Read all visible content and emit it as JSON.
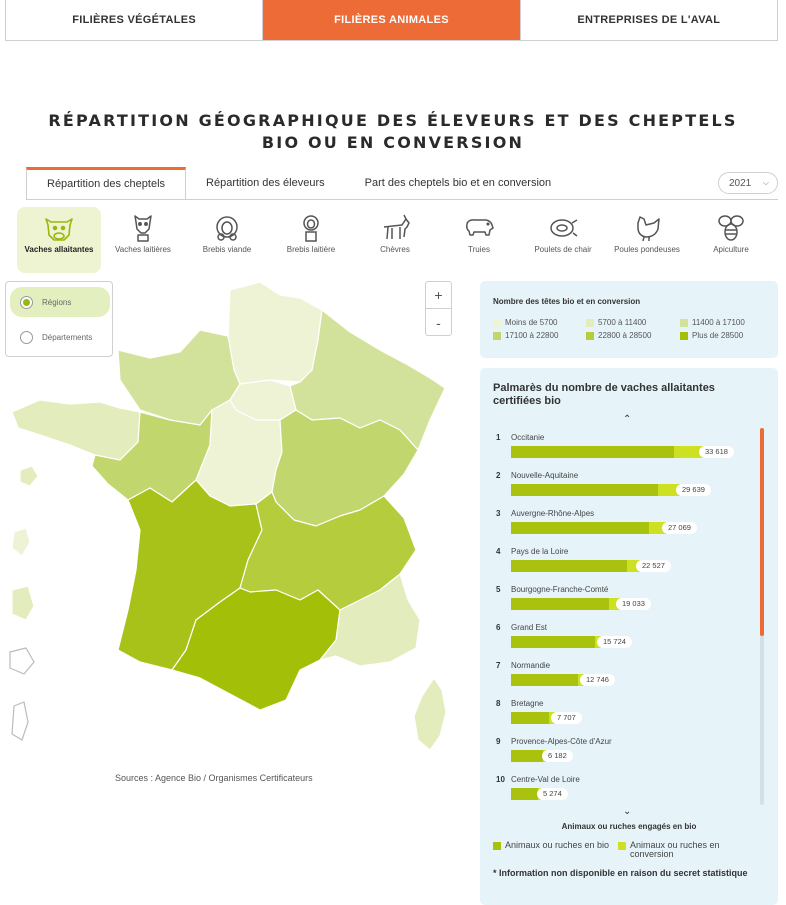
{
  "topnav": {
    "tabs": [
      {
        "label": "FILIÈRES VÉGÉTALES",
        "active": false
      },
      {
        "label": "FILIÈRES ANIMALES",
        "active": true
      },
      {
        "label": "ENTREPRISES DE L'AVAL",
        "active": false
      }
    ],
    "accent_color": "#ec6b36"
  },
  "page_title": "RÉPARTITION GÉOGRAPHIQUE DES ÉLEVEURS ET DES CHEPTELS BIO OU EN CONVERSION",
  "subtabs": [
    {
      "label": "Répartition des cheptels",
      "active": true
    },
    {
      "label": "Répartition des éleveurs",
      "active": false
    },
    {
      "label": "Part des cheptels bio et en conversion",
      "active": false
    }
  ],
  "year_select": {
    "value": "2021"
  },
  "species": [
    {
      "label": "Vaches allaitantes",
      "icon": "beef-cow-icon",
      "active": true
    },
    {
      "label": "Vaches laitières",
      "icon": "dairy-cow-icon",
      "active": false
    },
    {
      "label": "Brebis viande",
      "icon": "sheep-icon",
      "active": false
    },
    {
      "label": "Brebis laitière",
      "icon": "dairy-sheep-icon",
      "active": false
    },
    {
      "label": "Chèvres",
      "icon": "goat-icon",
      "active": false
    },
    {
      "label": "Truies",
      "icon": "pig-icon",
      "active": false
    },
    {
      "label": "Poulets de chair",
      "icon": "chicken-leg-icon",
      "active": false
    },
    {
      "label": "Poules pondeuses",
      "icon": "hen-icon",
      "active": false
    },
    {
      "label": "Apiculture",
      "icon": "bee-icon",
      "active": false
    }
  ],
  "level": {
    "options": [
      {
        "label": "Régions",
        "selected": true
      },
      {
        "label": "Départements",
        "selected": false
      }
    ]
  },
  "zoom": {
    "in": "+",
    "out": "-"
  },
  "sources": "Sources : Agence Bio / Organismes Certificateurs",
  "legend": {
    "title": "Nombre des têtes bio et en conversion",
    "classes": [
      {
        "label": "Moins de 5700",
        "color": "#eef3d6"
      },
      {
        "label": "5700 à 11400",
        "color": "#e3ecbc"
      },
      {
        "label": "11400 à 17100",
        "color": "#d3e29a"
      },
      {
        "label": "17100 à 22800",
        "color": "#c2d66e"
      },
      {
        "label": "22800 à 28500",
        "color": "#b5cc3d"
      },
      {
        "label": "Plus de 28500",
        "color": "#a4bf08"
      }
    ]
  },
  "ranking": {
    "title": "Palmarès du nombre de vaches allaitantes certifiées bio",
    "max": 33618,
    "items": [
      {
        "rank": "1",
        "region": "Occitanie",
        "total": 33618,
        "total_label": "33 618",
        "bio_share": 0.85
      },
      {
        "rank": "2",
        "region": "Nouvelle-Aquitaine",
        "total": 29639,
        "total_label": "29 639",
        "bio_share": 0.87
      },
      {
        "rank": "3",
        "region": "Auvergne-Rhône-Alpes",
        "total": 27069,
        "total_label": "27 069",
        "bio_share": 0.89
      },
      {
        "rank": "4",
        "region": "Pays de la Loire",
        "total": 22527,
        "total_label": "22 527",
        "bio_share": 0.9
      },
      {
        "rank": "5",
        "region": "Bourgogne-Franche-Comté",
        "total": 19033,
        "total_label": "19 033",
        "bio_share": 0.9
      },
      {
        "rank": "6",
        "region": "Grand Est",
        "total": 15724,
        "total_label": "15 724",
        "bio_share": 0.93
      },
      {
        "rank": "7",
        "region": "Normandie",
        "total": 12746,
        "total_label": "12 746",
        "bio_share": 0.92
      },
      {
        "rank": "8",
        "region": "Bretagne",
        "total": 7707,
        "total_label": "7 707",
        "bio_share": 0.87
      },
      {
        "rank": "9",
        "region": "Provence-Alpes-Côte d'Azur",
        "total": 6182,
        "total_label": "6 182",
        "bio_share": 0.9
      },
      {
        "rank": "10",
        "region": "Centre-Val de Loire",
        "total": 5274,
        "total_label": "5 274",
        "bio_share": 0.9
      }
    ],
    "bio_color": "#a8c20e",
    "conversion_color": "#cde021"
  },
  "footer": {
    "title": "Animaux ou ruches engagés en bio",
    "legend_bio": "Animaux ou ruches en bio",
    "legend_conversion": "Animaux ou ruches en conversion",
    "note": "* Information non disponible en raison du secret statistique"
  }
}
